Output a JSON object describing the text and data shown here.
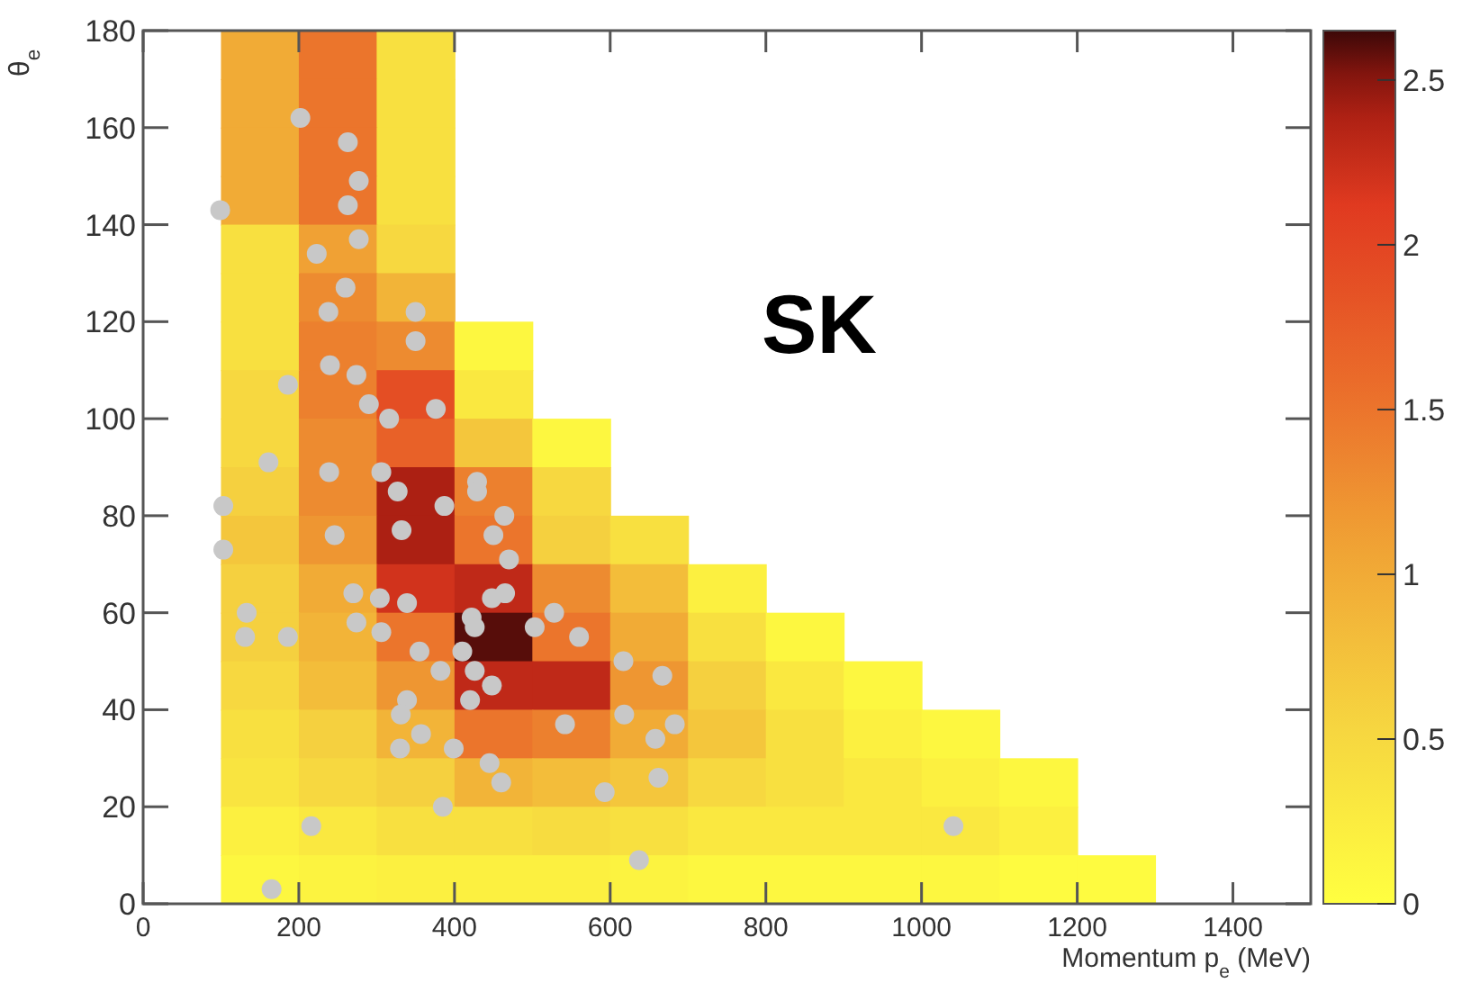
{
  "chart_data": {
    "type": "heatmap",
    "xlabel": "Momentum p$_{e}$ (MeV)",
    "ylabel": "θ$_{e}$",
    "annotations": [
      "SK"
    ],
    "x": [
      50,
      150,
      250,
      350,
      450,
      550,
      650,
      750,
      850,
      950,
      1050,
      1150,
      1250
    ],
    "xlim": [
      0,
      1500
    ],
    "xticks": [
      0,
      200,
      400,
      600,
      800,
      1000,
      1200,
      1400
    ],
    "ylim": [
      0,
      180
    ],
    "yticks": [
      0,
      20,
      40,
      60,
      80,
      100,
      120,
      140,
      160,
      180
    ],
    "clim": [
      0,
      2.65
    ],
    "cticks": [
      0,
      0.5,
      1,
      1.5,
      2,
      2.5
    ],
    "cells": [
      [
        null,
        1.0,
        1.5,
        0.4,
        null,
        null,
        null,
        null,
        null,
        null,
        null,
        null,
        null
      ],
      [
        null,
        1.0,
        1.5,
        0.4,
        null,
        null,
        null,
        null,
        null,
        null,
        null,
        null,
        null
      ],
      [
        null,
        1.0,
        1.5,
        0.4,
        null,
        null,
        null,
        null,
        null,
        null,
        null,
        null,
        null
      ],
      [
        null,
        1.0,
        1.5,
        0.4,
        null,
        null,
        null,
        null,
        null,
        null,
        null,
        null,
        null
      ],
      [
        null,
        0.4,
        1.1,
        0.5,
        null,
        null,
        null,
        null,
        null,
        null,
        null,
        null,
        null
      ],
      [
        null,
        0.4,
        1.3,
        0.9,
        null,
        null,
        null,
        null,
        null,
        null,
        null,
        null,
        null
      ],
      [
        null,
        0.4,
        1.4,
        1.3,
        0.1,
        null,
        null,
        null,
        null,
        null,
        null,
        null,
        null
      ],
      [
        null,
        0.5,
        1.4,
        1.9,
        0.3,
        null,
        null,
        null,
        null,
        null,
        null,
        null,
        null
      ],
      [
        null,
        0.5,
        1.3,
        1.7,
        0.7,
        0.1,
        null,
        null,
        null,
        null,
        null,
        null,
        null
      ],
      [
        null,
        0.6,
        1.3,
        2.4,
        1.4,
        0.5,
        null,
        null,
        null,
        null,
        null,
        null,
        null
      ],
      [
        null,
        0.7,
        1.2,
        2.4,
        1.5,
        0.6,
        0.4,
        null,
        null,
        null,
        null,
        null,
        null
      ],
      [
        null,
        0.6,
        1.0,
        2.2,
        2.3,
        1.3,
        0.8,
        0.2,
        null,
        null,
        null,
        null,
        null
      ],
      [
        null,
        0.6,
        0.9,
        1.5,
        2.6,
        1.5,
        1.0,
        0.4,
        0.1,
        null,
        null,
        null,
        null
      ],
      [
        null,
        0.5,
        0.8,
        1.2,
        2.3,
        2.3,
        1.2,
        0.6,
        0.3,
        0.1,
        null,
        null,
        null
      ],
      [
        null,
        0.4,
        0.6,
        0.9,
        1.5,
        1.4,
        1.0,
        0.7,
        0.4,
        0.2,
        0.1,
        null,
        null
      ],
      [
        null,
        0.35,
        0.5,
        0.6,
        0.9,
        0.8,
        0.7,
        0.5,
        0.4,
        0.3,
        0.2,
        0.1,
        null
      ],
      [
        null,
        0.2,
        0.3,
        0.4,
        0.4,
        0.45,
        0.4,
        0.3,
        0.3,
        0.3,
        0.3,
        0.2,
        null
      ],
      [
        null,
        0.1,
        0.15,
        0.2,
        0.2,
        0.2,
        0.15,
        0.1,
        0.1,
        0.1,
        0.1,
        0.05,
        0.05
      ]
    ],
    "series": [
      {
        "type": "scatter",
        "color": "#c8c8c8",
        "marker": "circle",
        "x": [
          99,
          202,
          263,
          277,
          263,
          277,
          223,
          260,
          238,
          350,
          350,
          240,
          274,
          186,
          290,
          316,
          376,
          161,
          239,
          306,
          327,
          429,
          429,
          387,
          464,
          103,
          103,
          246,
          332,
          450,
          470,
          270,
          304,
          339,
          448,
          465,
          133,
          131,
          186,
          274,
          306,
          422,
          426,
          503,
          528,
          560,
          355,
          410,
          382,
          426,
          448,
          339,
          331,
          420,
          617,
          618,
          542,
          357,
          330,
          399,
          445,
          460,
          593,
          385,
          216,
          165,
          637,
          667,
          683,
          658,
          662,
          1041
        ],
        "values": [
          143,
          162,
          157,
          149,
          144,
          137,
          134,
          127,
          122,
          122,
          116,
          111,
          109,
          107,
          103,
          100,
          102,
          91,
          89,
          89,
          85,
          87,
          85,
          82,
          80,
          82,
          73,
          76,
          77,
          76,
          71,
          64,
          63,
          62,
          63,
          64,
          60,
          55,
          55,
          58,
          56,
          59,
          57,
          57,
          60,
          55,
          52,
          52,
          48,
          48,
          45,
          42,
          39,
          42,
          50,
          39,
          37,
          35,
          32,
          32,
          29,
          25,
          23,
          20,
          16,
          3,
          9,
          47,
          37,
          34,
          26,
          16
        ]
      }
    ]
  }
}
